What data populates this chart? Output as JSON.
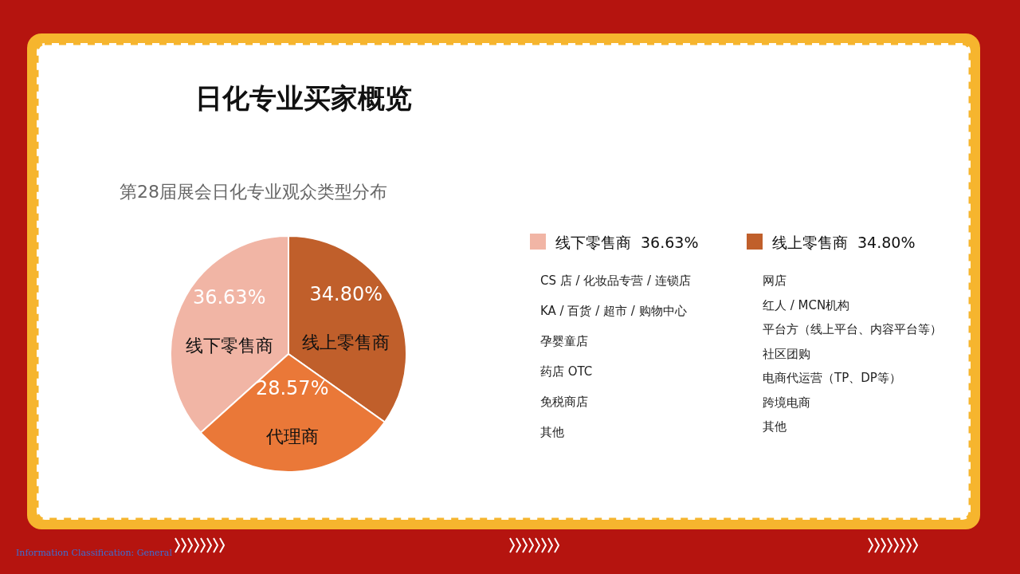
{
  "chart_data": {
    "type": "pie",
    "title": "日化专业买家概览",
    "subtitle": "第28届展会日化专业观众类型分布",
    "categories": [
      "线下零售商",
      "线上零售商",
      "代理商"
    ],
    "values": [
      36.63,
      34.8,
      28.57
    ],
    "value_labels": [
      "36.63%",
      "34.80%",
      "28.57%"
    ],
    "colors": [
      "#f1b5a5",
      "#c05f2b",
      "#ea7838"
    ],
    "legend": "right",
    "annotations": [
      "CS 店 / 化妆品专营 / 连锁店",
      "KA / 百货 / 超市 / 购物中心",
      "孕婴童店",
      "药店 OTC",
      "免税商店",
      "其他",
      "网店",
      "红人 / MCN机构",
      "平台方（线上平台、内容平台等）",
      "社区团购",
      "电商代运营（TP、DP等）",
      "跨境电商",
      "其他",
      "Information Classification: General"
    ]
  }
}
